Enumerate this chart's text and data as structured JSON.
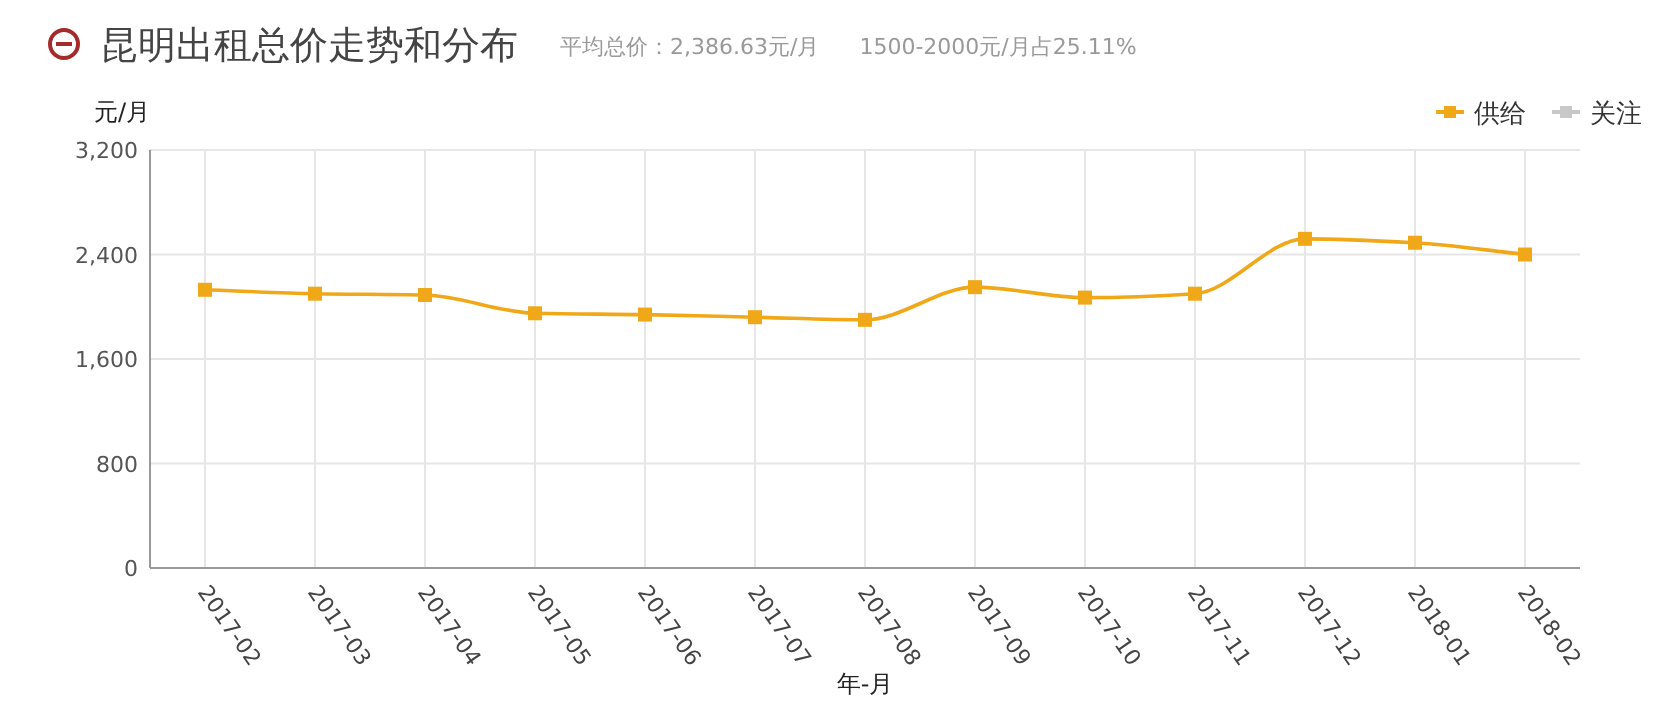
{
  "chart_data": {
    "type": "line",
    "title": "昆明出租总价走势和分布",
    "annotations": [
      "平均总价：2,386.63元/月",
      "1500-2000元/月占25.11%"
    ],
    "xlabel": "年-月",
    "ylabel": "元/月",
    "categories": [
      "2017-02",
      "2017-03",
      "2017-04",
      "2017-05",
      "2017-06",
      "2017-07",
      "2017-08",
      "2017-09",
      "2017-10",
      "2017-11",
      "2017-12",
      "2018-01",
      "2018-02"
    ],
    "series": [
      {
        "name": "供给",
        "color": "#f0a818",
        "values": [
          2130,
          2100,
          2090,
          1950,
          1940,
          1920,
          1900,
          2150,
          2070,
          2100,
          2520,
          2490,
          2400
        ]
      },
      {
        "name": "关注",
        "color": "#c8c8c8",
        "values": [
          null,
          null,
          null,
          null,
          null,
          null,
          null,
          null,
          null,
          null,
          null,
          null,
          null
        ]
      }
    ],
    "ylim": [
      0,
      3200
    ],
    "yticks": [
      0,
      {
        "value": 800,
        "label": "800"
      },
      {
        "value": 1600,
        "label": "1,600"
      },
      {
        "value": 2400,
        "label": "2,400"
      },
      {
        "value": 3200,
        "label": "3,200"
      }
    ],
    "grid": true,
    "legend": "top right",
    "marker": "square",
    "line_style": "solid"
  }
}
